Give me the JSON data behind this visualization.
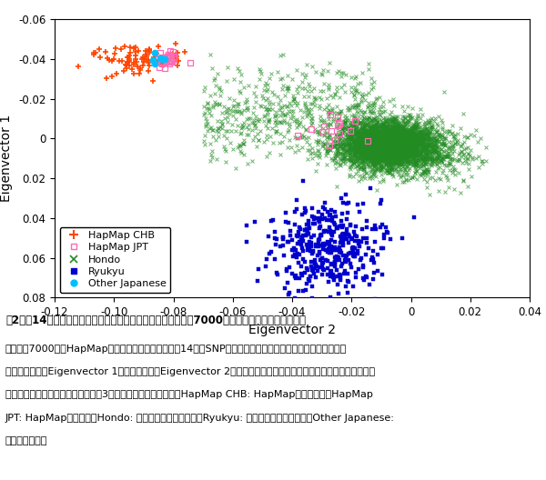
{
  "xlabel": "Eigenvector 2",
  "ylabel": "Eigenvector 1",
  "xlim": [
    -0.12,
    0.04
  ],
  "ylim": [
    0.08,
    -0.06
  ],
  "xticks": [
    -0.12,
    -0.1,
    -0.08,
    -0.06,
    -0.04,
    -0.02,
    0.0,
    0.02,
    0.04
  ],
  "yticks": [
    -0.06,
    -0.04,
    -0.02,
    0.0,
    0.02,
    0.04,
    0.06,
    0.08
  ],
  "chb_color": "#FF4500",
  "jpt_color": "#FF69B4",
  "hondo_color": "#228B22",
  "ryukyu_color": "#0000CD",
  "other_color": "#00BFFF",
  "seed": 42,
  "background_color": "#FFFFFF",
  "caption_title": "図2：約14万のマーカーを用い、主成分分析を用いた日本人約7000人と中国人のクラスタリング",
  "caption_line1": "日本人約7000人とHapMapの中国人より、一人当たら14万のSNP遵伝子型情報を得た。主成分分析により解析",
  "caption_line2": "し、第一成分（Eigenvector 1）と第二成分（Eigenvector 2）により二次元に個人をプロットした結果、中国人、",
  "caption_line3": "本土日本人、沖縄日本人に特徴的な3つのクラスターに別れた。HapMap CHB: HapMapの漢中国人、HapMap",
  "caption_line4": "JPT: HapMapの日本人、Hondo: 本土日本人クラスター、Ryukyu: 琴球日本人クラスター、Other Japanese:",
  "caption_line5": "その他の日本人"
}
